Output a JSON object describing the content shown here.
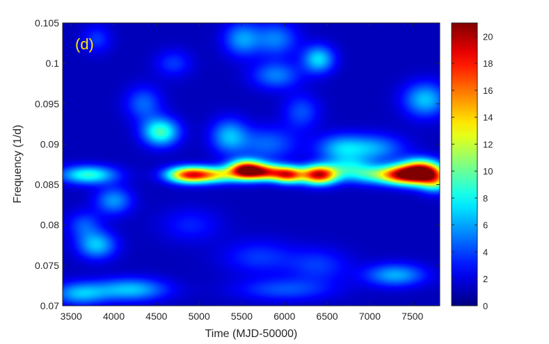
{
  "chart_data": {
    "type": "heatmap",
    "panel_label": "(d)",
    "xlabel": "Time (MJD-50000)",
    "ylabel": "Frequency (1/d)",
    "xlim": [
      3400,
      7820
    ],
    "ylim": [
      0.07,
      0.105
    ],
    "x_ticks": [
      3500,
      4000,
      4500,
      5000,
      5500,
      6000,
      6500,
      7000,
      7500
    ],
    "x_tick_labels": [
      "3500",
      "4000",
      "4500",
      "5000",
      "5500",
      "6000",
      "6500",
      "7000",
      "7500"
    ],
    "y_ticks": [
      0.07,
      0.075,
      0.08,
      0.085,
      0.09,
      0.095,
      0.1,
      0.105
    ],
    "y_tick_labels": [
      "0.07",
      "0.075",
      "0.08",
      "0.085",
      "0.09",
      "0.095",
      "0.1",
      "0.105"
    ],
    "colorbar": {
      "colormap": "jet",
      "range": [
        0,
        21
      ],
      "ticks": [
        0,
        2,
        4,
        6,
        8,
        10,
        12,
        14,
        16,
        18,
        20
      ],
      "tick_labels": [
        "0",
        "2",
        "4",
        "6",
        "8",
        "10",
        "12",
        "14",
        "16",
        "18",
        "20"
      ]
    },
    "background_level": 1.2,
    "features": [
      {
        "x": 3700,
        "y": 0.0862,
        "sx": 230,
        "sy": 0.0008,
        "amp": 7.5
      },
      {
        "x": 4000,
        "y": 0.083,
        "sx": 150,
        "sy": 0.0012,
        "amp": 4.5
      },
      {
        "x": 3800,
        "y": 0.0775,
        "sx": 160,
        "sy": 0.0012,
        "amp": 5.5
      },
      {
        "x": 3650,
        "y": 0.08,
        "sx": 140,
        "sy": 0.0012,
        "amp": 3.0
      },
      {
        "x": 3600,
        "y": 0.0715,
        "sx": 220,
        "sy": 0.001,
        "amp": 5.0
      },
      {
        "x": 4200,
        "y": 0.072,
        "sx": 300,
        "sy": 0.001,
        "amp": 5.5
      },
      {
        "x": 4550,
        "y": 0.0915,
        "sx": 150,
        "sy": 0.0012,
        "amp": 8.0
      },
      {
        "x": 4350,
        "y": 0.095,
        "sx": 150,
        "sy": 0.0015,
        "amp": 3.5
      },
      {
        "x": 4880,
        "y": 0.0862,
        "sx": 180,
        "sy": 0.0007,
        "amp": 15.0
      },
      {
        "x": 5200,
        "y": 0.0862,
        "sx": 200,
        "sy": 0.0007,
        "amp": 9.0
      },
      {
        "x": 5550,
        "y": 0.0868,
        "sx": 140,
        "sy": 0.0008,
        "amp": 19.0
      },
      {
        "x": 5800,
        "y": 0.0865,
        "sx": 150,
        "sy": 0.0007,
        "amp": 13.0
      },
      {
        "x": 6050,
        "y": 0.0862,
        "sx": 120,
        "sy": 0.0007,
        "amp": 14.0
      },
      {
        "x": 6400,
        "y": 0.0862,
        "sx": 150,
        "sy": 0.0008,
        "amp": 18.0
      },
      {
        "x": 6750,
        "y": 0.087,
        "sx": 200,
        "sy": 0.001,
        "amp": 5.0
      },
      {
        "x": 7050,
        "y": 0.0862,
        "sx": 200,
        "sy": 0.0008,
        "amp": 6.0
      },
      {
        "x": 7350,
        "y": 0.0862,
        "sx": 160,
        "sy": 0.0008,
        "amp": 13.0
      },
      {
        "x": 7600,
        "y": 0.0865,
        "sx": 160,
        "sy": 0.001,
        "amp": 21.0
      },
      {
        "x": 7780,
        "y": 0.0855,
        "sx": 120,
        "sy": 0.001,
        "amp": 8.0
      },
      {
        "x": 5350,
        "y": 0.091,
        "sx": 150,
        "sy": 0.0015,
        "amp": 5.0
      },
      {
        "x": 5800,
        "y": 0.09,
        "sx": 250,
        "sy": 0.0015,
        "amp": 3.5
      },
      {
        "x": 6200,
        "y": 0.094,
        "sx": 150,
        "sy": 0.0015,
        "amp": 3.0
      },
      {
        "x": 6650,
        "y": 0.0895,
        "sx": 200,
        "sy": 0.0012,
        "amp": 4.5
      },
      {
        "x": 7050,
        "y": 0.0895,
        "sx": 250,
        "sy": 0.0012,
        "amp": 4.5
      },
      {
        "x": 7650,
        "y": 0.0955,
        "sx": 180,
        "sy": 0.0015,
        "amp": 5.5
      },
      {
        "x": 5500,
        "y": 0.103,
        "sx": 150,
        "sy": 0.0015,
        "amp": 4.5
      },
      {
        "x": 5900,
        "y": 0.103,
        "sx": 180,
        "sy": 0.0015,
        "amp": 4.0
      },
      {
        "x": 6400,
        "y": 0.1005,
        "sx": 130,
        "sy": 0.0012,
        "amp": 6.0
      },
      {
        "x": 5900,
        "y": 0.0985,
        "sx": 200,
        "sy": 0.0012,
        "amp": 4.0
      },
      {
        "x": 4700,
        "y": 0.1,
        "sx": 150,
        "sy": 0.0012,
        "amp": 2.5
      },
      {
        "x": 3800,
        "y": 0.103,
        "sx": 120,
        "sy": 0.0012,
        "amp": 2.5
      },
      {
        "x": 5700,
        "y": 0.076,
        "sx": 300,
        "sy": 0.0015,
        "amp": 2.5
      },
      {
        "x": 6400,
        "y": 0.075,
        "sx": 250,
        "sy": 0.0015,
        "amp": 2.5
      },
      {
        "x": 7300,
        "y": 0.0738,
        "sx": 250,
        "sy": 0.001,
        "amp": 5.0
      },
      {
        "x": 6000,
        "y": 0.072,
        "sx": 400,
        "sy": 0.001,
        "amp": 3.0
      },
      {
        "x": 4900,
        "y": 0.08,
        "sx": 250,
        "sy": 0.0015,
        "amp": 2.0
      }
    ]
  },
  "colors": {
    "panel_label": "#FFEB00",
    "axes": "#262626",
    "background": "#FFFFFF"
  }
}
